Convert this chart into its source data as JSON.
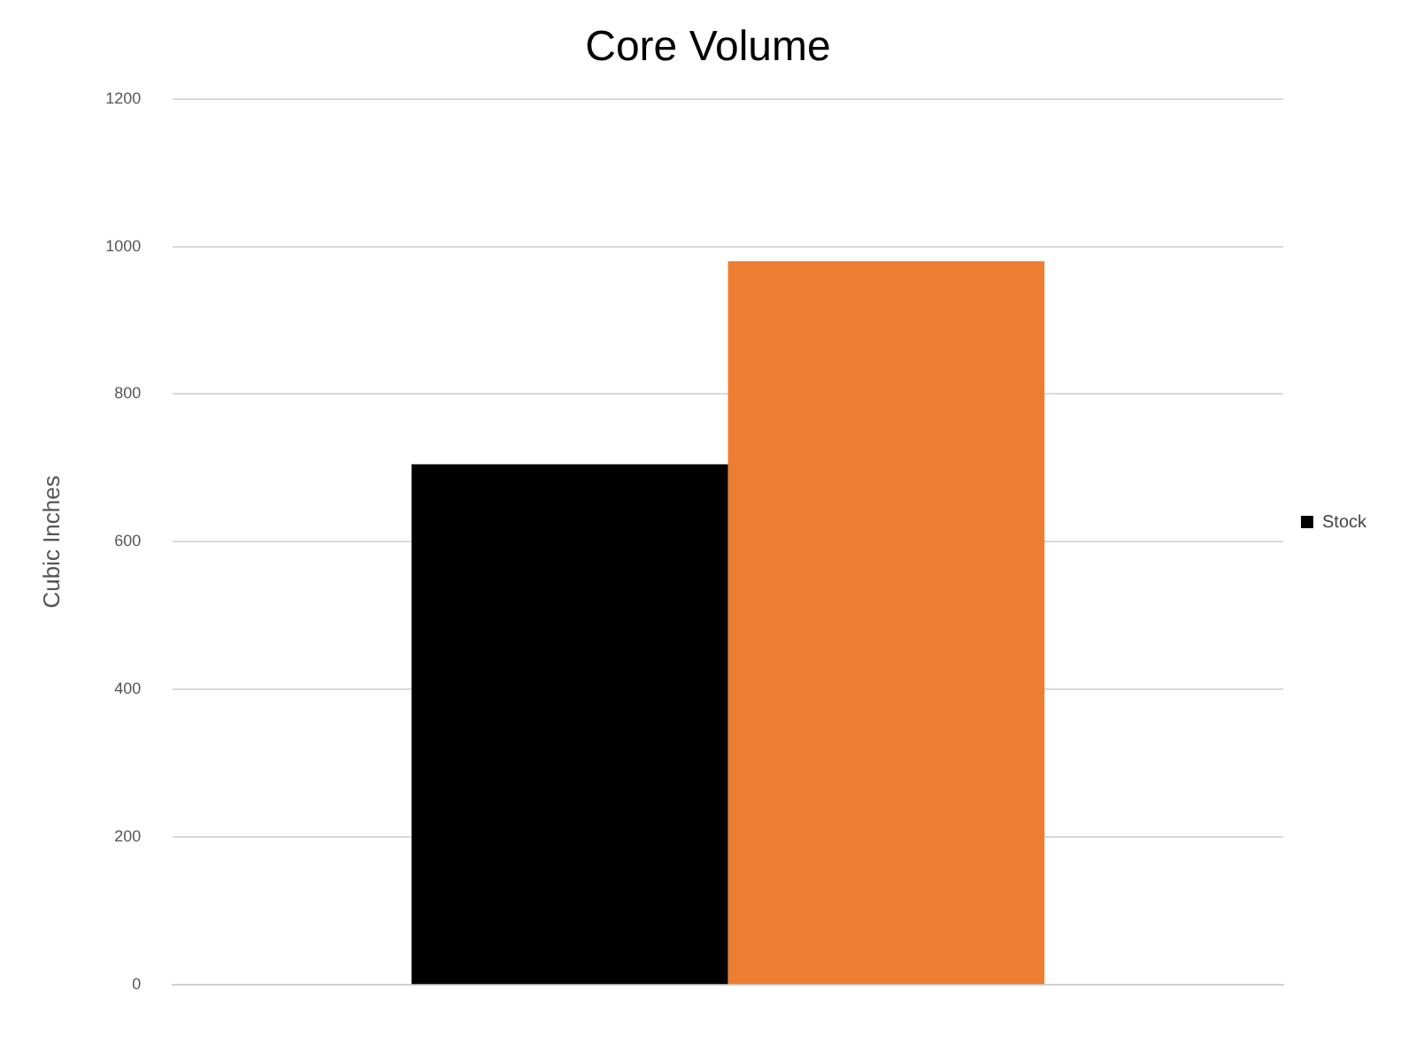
{
  "chart_data": {
    "type": "bar",
    "title": "Core Volume",
    "ylabel": "Cubic Inches",
    "categories": [
      null
    ],
    "series": [
      {
        "name": "Stock",
        "color": "#000000",
        "values": [
          705
        ]
      },
      {
        "color": "#ed7d31",
        "values": [
          980
        ]
      }
    ],
    "ylim": [
      0,
      1200
    ],
    "yticks": [
      0,
      200,
      400,
      600,
      800,
      1000,
      1200
    ],
    "grid": "y",
    "legend": "right"
  }
}
